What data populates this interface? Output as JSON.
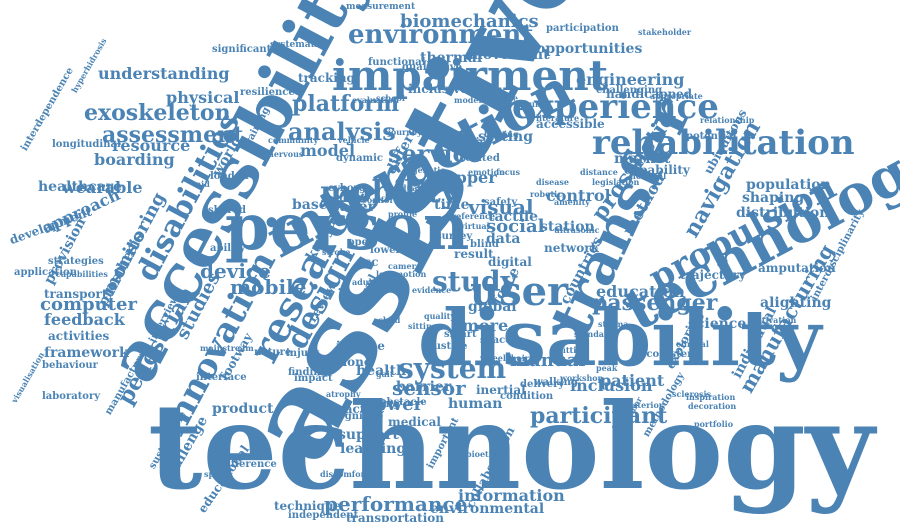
{
  "accent_color": "#4a83b4",
  "words": [
    "technology",
    "assistive",
    "accessibility",
    "disability",
    "person",
    "technologies",
    "interaction",
    "impairment",
    "transfer",
    "user",
    "rehabilitation",
    "research",
    "experience",
    "environment",
    "innovation",
    "disabilities",
    "system",
    "propulsion",
    "mobility",
    "design",
    "study",
    "service",
    "platform",
    "analysis",
    "exoskeleton",
    "assessment",
    "passenger",
    "biomechanics",
    "navigation",
    "prosthetic",
    "mobile",
    "sensor",
    "visual",
    "device",
    "pedestrian",
    "participant",
    "computer",
    "manufacturing",
    "performance",
    "information",
    "environmental",
    "manual",
    "power",
    "inclusion",
    "education",
    "social",
    "opportunities",
    "engineering",
    "understanding",
    "monitoring",
    "boarding",
    "wearable",
    "approach",
    "feedback",
    "framework",
    "activities",
    "healthcare",
    "development",
    "provision",
    "studies",
    "handicapped",
    "movement",
    "thermal",
    "physical",
    "tracking",
    "resource",
    "model",
    "setting",
    "upper",
    "data",
    "patient",
    "control",
    "market",
    "capability",
    "population",
    "distribution",
    "shaping",
    "science",
    "individual",
    "exploring",
    "product",
    "support",
    "learning",
    "human",
    "health",
    "practice",
    "transportation",
    "technique",
    "independent",
    "challenge",
    "educational",
    "difference",
    "functional",
    "inclusive",
    "different",
    "accessible",
    "qualitative",
    "measurement",
    "significant",
    "systematic",
    "longitudinal",
    "behaviour",
    "transport",
    "laboratory",
    "application",
    "strategies",
    "prosthesis",
    "interview",
    "footway",
    "nature",
    "injury",
    "income",
    "phone",
    "more",
    "global",
    "force",
    "review",
    "level",
    "kenya",
    "countries",
    "method",
    "station",
    "network",
    "digital",
    "tactile",
    "safety",
    "time",
    "paper",
    "based",
    "world",
    "london",
    "challenging",
    "participation",
    "stakeholder",
    "interdependence",
    "interdisciplinarity",
    "manufacture",
    "sustainable",
    "alighting",
    "trajectory",
    "ubiquitous",
    "potential",
    "amputation",
    "motivation",
    "ecosystem",
    "collaboration",
    "important",
    "medical",
    "condition",
    "barrier",
    "impact",
    "finding",
    "cognitive",
    "inertial",
    "delivery",
    "walking",
    "workshop",
    "training",
    "related",
    "effective",
    "literature",
    "ground",
    "available",
    "modelling",
    "resilience",
    "evaluation",
    "appropriate",
    "relationship",
    "distance",
    "disease",
    "shared",
    "interface",
    "mainstream",
    "camera",
    "ability",
    "obstacle",
    "spinal",
    "lower",
    "open",
    "blind",
    "survey",
    "ageing",
    "smart",
    "space",
    "result",
    "justice",
    "acc",
    "cyborg",
    "dynamic",
    "portfolio",
    "visualisation",
    "virtual",
    "evidence",
    "alzheimer",
    "methodology",
    "posterior",
    "inspiration",
    "decoration",
    "sclerosis",
    "stigma",
    "wheelchair",
    "hyperhidrosis",
    "ultrasonic",
    "robotic",
    "amenity",
    "comfort",
    "legislation",
    "hospital",
    "clinical",
    "genetic",
    "fitting",
    "residual",
    "stroke",
    "adult",
    "child",
    "capabilities",
    "vehicle",
    "journey",
    "peak",
    "reference",
    "standard",
    "quality",
    "bioethics",
    "atrophy",
    "bearing",
    "locomotion",
    "profile",
    "school",
    "sitting",
    "gait",
    "emotion",
    "focus",
    "library",
    "nervous",
    "community",
    "discomfort",
    "aid"
  ]
}
